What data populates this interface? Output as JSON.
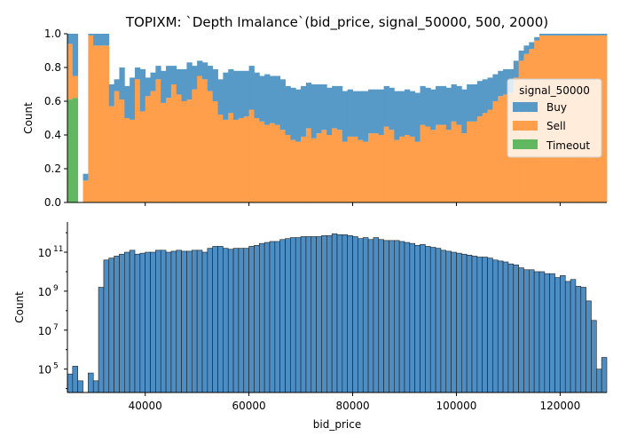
{
  "chart_data": [
    {
      "type": "bar",
      "stacked": "fill",
      "title": "TOPIXM: `Depth Imalance`(bid_price, signal_50000, 500, 2000)",
      "xlabel": "",
      "ylabel": "Count",
      "xlim": [
        25000,
        129000
      ],
      "ylim": [
        0,
        1
      ],
      "yticks": [
        0.0,
        0.2,
        0.4,
        0.6,
        0.8,
        1.0
      ],
      "ytick_labels": [
        "0.0",
        "0.2",
        "0.4",
        "0.6",
        "0.8",
        "1.0"
      ],
      "xticks": [
        40000,
        60000,
        80000,
        100000,
        120000
      ],
      "xtick_labels_shown": false,
      "bin_start": 25000,
      "bin_width": 1000,
      "bin_count": 104,
      "legend": {
        "title": "signal_50000",
        "position": "right",
        "entries": [
          "Buy",
          "Sell",
          "Timeout"
        ]
      },
      "series": [
        {
          "name": "Buy",
          "color": "#5799c7"
        },
        {
          "name": "Sell",
          "color": "#ff9f4b"
        },
        {
          "name": "Timeout",
          "color": "#61b861"
        }
      ],
      "timeout_share": [
        0.61,
        0.62,
        0.0,
        0.0,
        0.0,
        0.0,
        0.0,
        0.0,
        0.0,
        0.0,
        0.0,
        0.0,
        0.0,
        0.0,
        0.0,
        0.0,
        0.0,
        0.0,
        0.0,
        0.0,
        0.0,
        0.0,
        0.0,
        0.0,
        0.0,
        0.0,
        0.0,
        0.0,
        0.0,
        0.0,
        0.0,
        0.0,
        0.0,
        0.0,
        0.0,
        0.0,
        0.0,
        0.0,
        0.0,
        0.0,
        0.0,
        0.0,
        0.0,
        0.0,
        0.0,
        0.0,
        0.0,
        0.0,
        0.0,
        0.0,
        0.0,
        0.0,
        0.0,
        0.0,
        0.0,
        0.0,
        0.0,
        0.0,
        0.0,
        0.0,
        0.0,
        0.0,
        0.0,
        0.0,
        0.0,
        0.0,
        0.0,
        0.0,
        0.0,
        0.0,
        0.0,
        0.0,
        0.0,
        0.0,
        0.0,
        0.0,
        0.0,
        0.0,
        0.0,
        0.0,
        0.0,
        0.0,
        0.0,
        0.0,
        0.0,
        0.0,
        0.0,
        0.0,
        0.0,
        0.0,
        0.0,
        0.0,
        0.0,
        0.0,
        0.0,
        0.0,
        0.0,
        0.0,
        0.0,
        0.0,
        0.0,
        0.0,
        0.0,
        0.0
      ],
      "sell_share": [
        0.33,
        0.13,
        0.0,
        0.13,
        0.99,
        0.93,
        0.93,
        0.93,
        0.57,
        0.66,
        0.61,
        0.5,
        0.49,
        0.73,
        0.54,
        0.63,
        0.66,
        0.73,
        0.59,
        0.62,
        0.7,
        0.64,
        0.6,
        0.61,
        0.67,
        0.75,
        0.73,
        0.66,
        0.6,
        0.52,
        0.49,
        0.53,
        0.49,
        0.5,
        0.51,
        0.55,
        0.5,
        0.48,
        0.46,
        0.47,
        0.46,
        0.43,
        0.4,
        0.37,
        0.36,
        0.39,
        0.44,
        0.38,
        0.41,
        0.43,
        0.4,
        0.44,
        0.43,
        0.36,
        0.39,
        0.39,
        0.37,
        0.36,
        0.41,
        0.41,
        0.4,
        0.45,
        0.43,
        0.37,
        0.39,
        0.4,
        0.39,
        0.36,
        0.46,
        0.45,
        0.43,
        0.46,
        0.46,
        0.43,
        0.48,
        0.46,
        0.41,
        0.48,
        0.48,
        0.51,
        0.53,
        0.55,
        0.6,
        0.63,
        0.64,
        0.65,
        0.74,
        0.84,
        0.88,
        0.91,
        0.96,
        0.99,
        0.99,
        0.99,
        0.99,
        0.99,
        0.99,
        0.99,
        0.99,
        0.99,
        0.99,
        0.99,
        0.99,
        0.99
      ],
      "buy_share": [
        0.06,
        0.25,
        0.0,
        0.04,
        0.01,
        0.07,
        0.07,
        0.07,
        0.13,
        0.07,
        0.19,
        0.19,
        0.25,
        0.07,
        0.25,
        0.11,
        0.11,
        0.08,
        0.19,
        0.19,
        0.11,
        0.15,
        0.19,
        0.22,
        0.14,
        0.09,
        0.1,
        0.15,
        0.19,
        0.21,
        0.28,
        0.26,
        0.29,
        0.28,
        0.27,
        0.26,
        0.27,
        0.27,
        0.3,
        0.28,
        0.29,
        0.3,
        0.29,
        0.31,
        0.31,
        0.3,
        0.27,
        0.32,
        0.29,
        0.27,
        0.28,
        0.25,
        0.26,
        0.3,
        0.28,
        0.27,
        0.29,
        0.3,
        0.26,
        0.26,
        0.27,
        0.24,
        0.25,
        0.29,
        0.27,
        0.27,
        0.27,
        0.29,
        0.23,
        0.23,
        0.24,
        0.23,
        0.23,
        0.25,
        0.22,
        0.23,
        0.26,
        0.22,
        0.22,
        0.21,
        0.2,
        0.19,
        0.16,
        0.15,
        0.15,
        0.14,
        0.1,
        0.06,
        0.05,
        0.04,
        0.02,
        0.01,
        0.01,
        0.01,
        0.01,
        0.01,
        0.01,
        0.01,
        0.01,
        0.01,
        0.01,
        0.01,
        0.01,
        0.01
      ]
    },
    {
      "type": "bar",
      "title": "",
      "xlabel": "bid_price",
      "ylabel": "Count",
      "yscale": "log",
      "xlim": [
        25000,
        129000
      ],
      "ylim_log10": [
        3.8,
        12.55
      ],
      "xticks": [
        40000,
        60000,
        80000,
        100000,
        120000
      ],
      "xtick_labels": [
        "40000",
        "60000",
        "80000",
        "100000",
        "120000"
      ],
      "ytick_values": [
        100000,
        10000000,
        1000000000,
        100000000000
      ],
      "ytick_base": "10",
      "ytick_exponents": [
        "5",
        "7",
        "9",
        "11"
      ],
      "bin_start": 25000,
      "bin_width": 1000,
      "bin_count": 104,
      "color": "#4c8dc4",
      "log10_counts": [
        4.75,
        5.15,
        4.4,
        0,
        4.8,
        4.4,
        9.2,
        10.6,
        10.7,
        10.8,
        10.9,
        11.0,
        11.1,
        10.9,
        10.95,
        11.0,
        11.0,
        11.1,
        11.1,
        11.0,
        11.05,
        11.1,
        11.05,
        11.05,
        11.1,
        11.1,
        11.0,
        11.2,
        11.3,
        11.3,
        11.2,
        11.15,
        11.2,
        11.2,
        11.2,
        11.3,
        11.35,
        11.45,
        11.5,
        11.55,
        11.55,
        11.65,
        11.7,
        11.75,
        11.75,
        11.8,
        11.8,
        11.8,
        11.8,
        11.85,
        11.85,
        11.95,
        11.9,
        11.9,
        11.85,
        11.8,
        11.7,
        11.75,
        11.65,
        11.75,
        11.65,
        11.6,
        11.6,
        11.6,
        11.55,
        11.5,
        11.45,
        11.35,
        11.4,
        11.3,
        11.25,
        11.2,
        11.1,
        11.05,
        11.0,
        10.95,
        10.9,
        10.85,
        10.8,
        10.75,
        10.75,
        10.7,
        10.6,
        10.55,
        10.5,
        10.4,
        10.35,
        10.2,
        10.1,
        10.1,
        10.0,
        10.0,
        9.9,
        9.9,
        9.7,
        9.8,
        9.5,
        9.6,
        9.25,
        9.2,
        8.5,
        7.5,
        5.0,
        5.6
      ]
    }
  ]
}
